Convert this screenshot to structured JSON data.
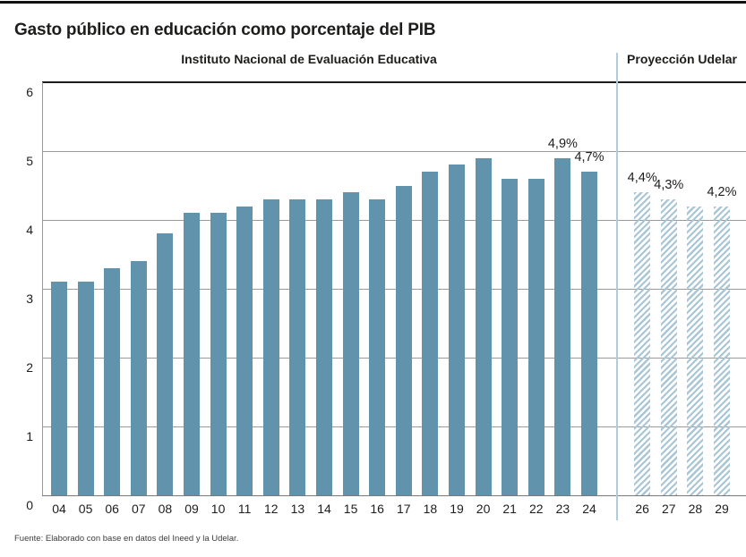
{
  "title": "Gasto público en educación como porcentaje del PIB",
  "source": "Fuente: Elaborado con base en datos del Ineed y la Udelar.",
  "sections": {
    "left_header": "Instituto Nacional de Evaluación Educativa",
    "right_header": "Proyección Udelar"
  },
  "colors": {
    "bar": "#6193ad",
    "hatch_stripe": "#a9c6d6",
    "separator_line": "#aecde0",
    "gridline": "#9b9b9b",
    "axis_line": "#7a7a7a",
    "top_rule": "#111111",
    "text": "#1d1d1b"
  },
  "chart_data": {
    "type": "bar",
    "title": "Gasto público en educación como porcentaje del PIB",
    "xlabel": "",
    "ylabel": "",
    "ylim": [
      0,
      6
    ],
    "yticks": [
      0,
      1,
      2,
      3,
      4,
      5,
      6
    ],
    "grid": true,
    "legend_position": "none",
    "series": [
      {
        "name": "Instituto Nacional de Evaluación Educativa",
        "style": "solid",
        "categories": [
          "04",
          "05",
          "06",
          "07",
          "08",
          "09",
          "10",
          "11",
          "12",
          "13",
          "14",
          "15",
          "16",
          "17",
          "18",
          "19",
          "20",
          "21",
          "22",
          "23",
          "24"
        ],
        "values": [
          3.1,
          3.1,
          3.3,
          3.4,
          3.8,
          4.1,
          4.1,
          4.2,
          4.3,
          4.3,
          4.3,
          4.4,
          4.3,
          4.5,
          4.7,
          4.8,
          4.9,
          4.6,
          4.6,
          4.9,
          4.7
        ]
      },
      {
        "name": "Proyección Udelar",
        "style": "hatched",
        "categories": [
          "26",
          "27",
          "28",
          "29"
        ],
        "values": [
          4.4,
          4.3,
          4.2,
          4.2
        ]
      }
    ],
    "annotations": [
      {
        "category": "23",
        "text": "4,9%"
      },
      {
        "category": "24",
        "text": "4,7%"
      },
      {
        "category": "26",
        "text": "4,4%"
      },
      {
        "category": "27",
        "text": "4,3%"
      },
      {
        "category": "29",
        "text": "4,2%"
      }
    ]
  }
}
